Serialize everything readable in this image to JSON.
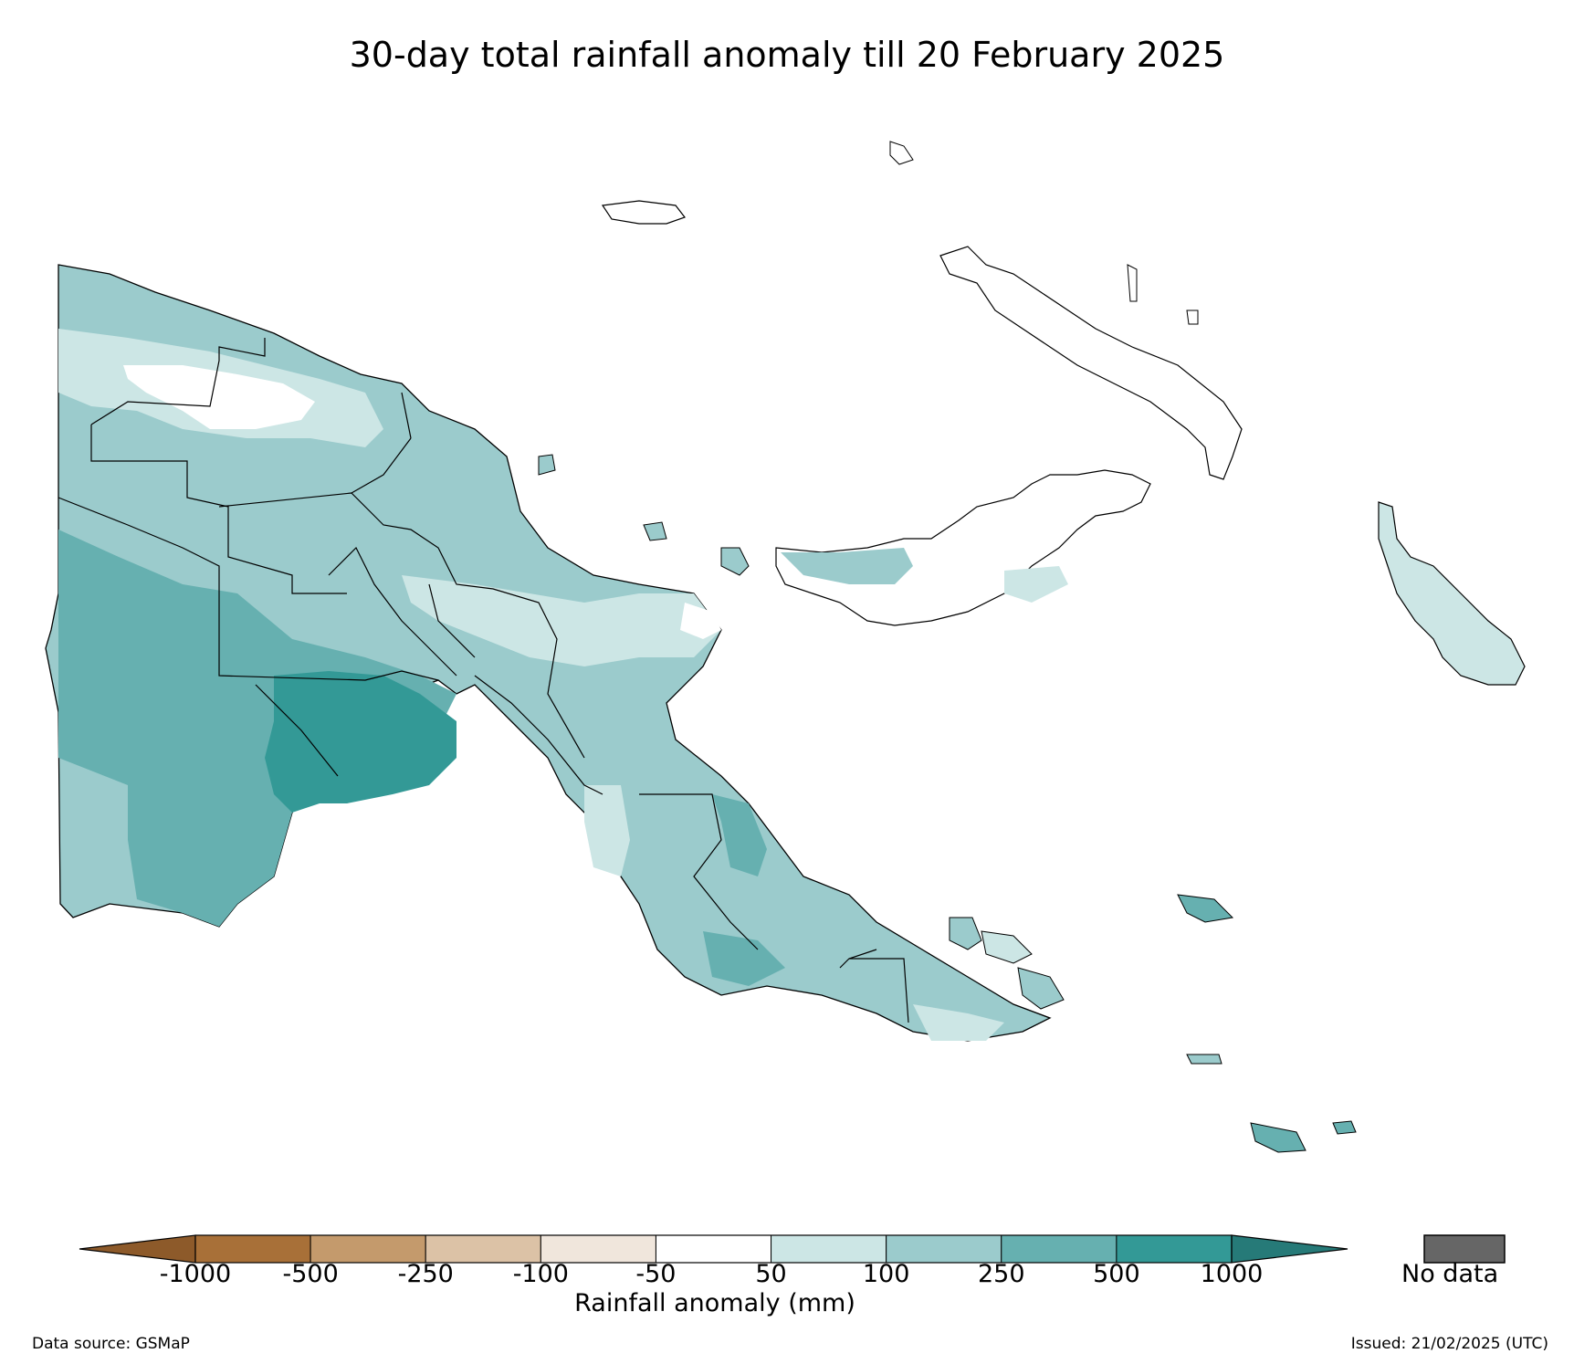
{
  "title": "30-day total rainfall anomaly till 20 February 2025",
  "colorbar": {
    "title": "Rainfall anomaly (mm)",
    "tick_labels": [
      "-1000",
      "-500",
      "-250",
      "-100",
      "-50",
      "50",
      "100",
      "250",
      "500",
      "1000"
    ],
    "colors": [
      "#8d5a2a",
      "#a87038",
      "#c49a6c",
      "#dcc2a6",
      "#f0e6dc",
      "#ffffff",
      "#cce6e5",
      "#9bcbcc",
      "#66b0b0",
      "#339996",
      "#267a78"
    ],
    "extend": "both"
  },
  "no_data": {
    "label": "No data",
    "color": "#666666"
  },
  "footer": {
    "source": "Data source: GSMaP",
    "issued": "Issued: 21/02/2025 (UTC)"
  }
}
